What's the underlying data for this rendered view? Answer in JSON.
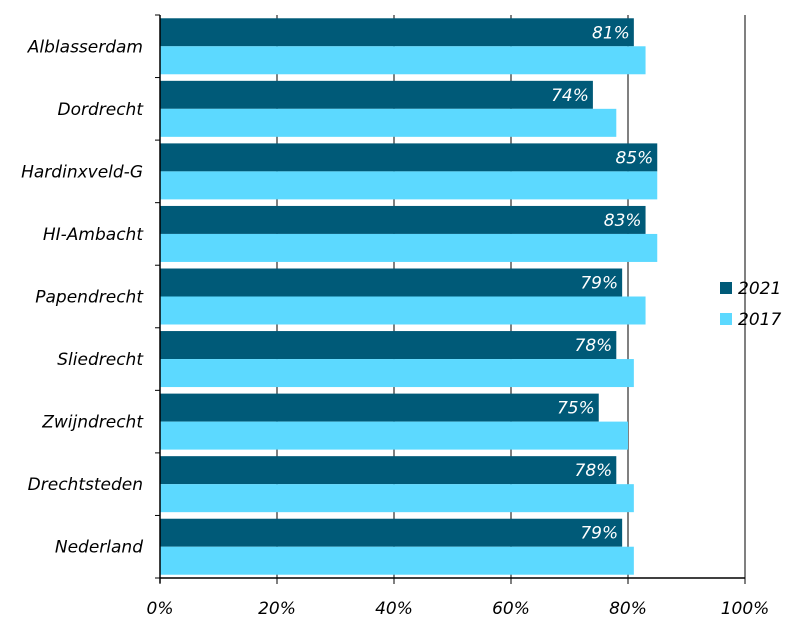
{
  "chart_data": {
    "type": "bar",
    "orientation": "horizontal",
    "categories": [
      "Alblasserdam",
      "Dordrecht",
      "Hardinxveld-G",
      "HI-Ambacht",
      "Papendrecht",
      "Sliedrecht",
      "Zwijndrecht",
      "Drechtsteden",
      "Nederland"
    ],
    "series": [
      {
        "name": "2021",
        "color": "#005a78",
        "values": [
          81,
          74,
          85,
          83,
          79,
          78,
          75,
          78,
          79
        ],
        "data_labels": [
          "81%",
          "74%",
          "85%",
          "83%",
          "79%",
          "78%",
          "75%",
          "78%",
          "79%"
        ]
      },
      {
        "name": "2017",
        "color": "#5cd9ff",
        "values": [
          83,
          78,
          85,
          85,
          83,
          81,
          80,
          81,
          81
        ]
      }
    ],
    "xlim": [
      0,
      100
    ],
    "xticks": [
      0,
      20,
      40,
      60,
      80,
      100
    ],
    "xtick_labels": [
      "0%",
      "20%",
      "40%",
      "60%",
      "80%",
      "100%"
    ],
    "title": "",
    "xlabel": "",
    "ylabel": "",
    "grid": "vertical",
    "legend": "right"
  }
}
